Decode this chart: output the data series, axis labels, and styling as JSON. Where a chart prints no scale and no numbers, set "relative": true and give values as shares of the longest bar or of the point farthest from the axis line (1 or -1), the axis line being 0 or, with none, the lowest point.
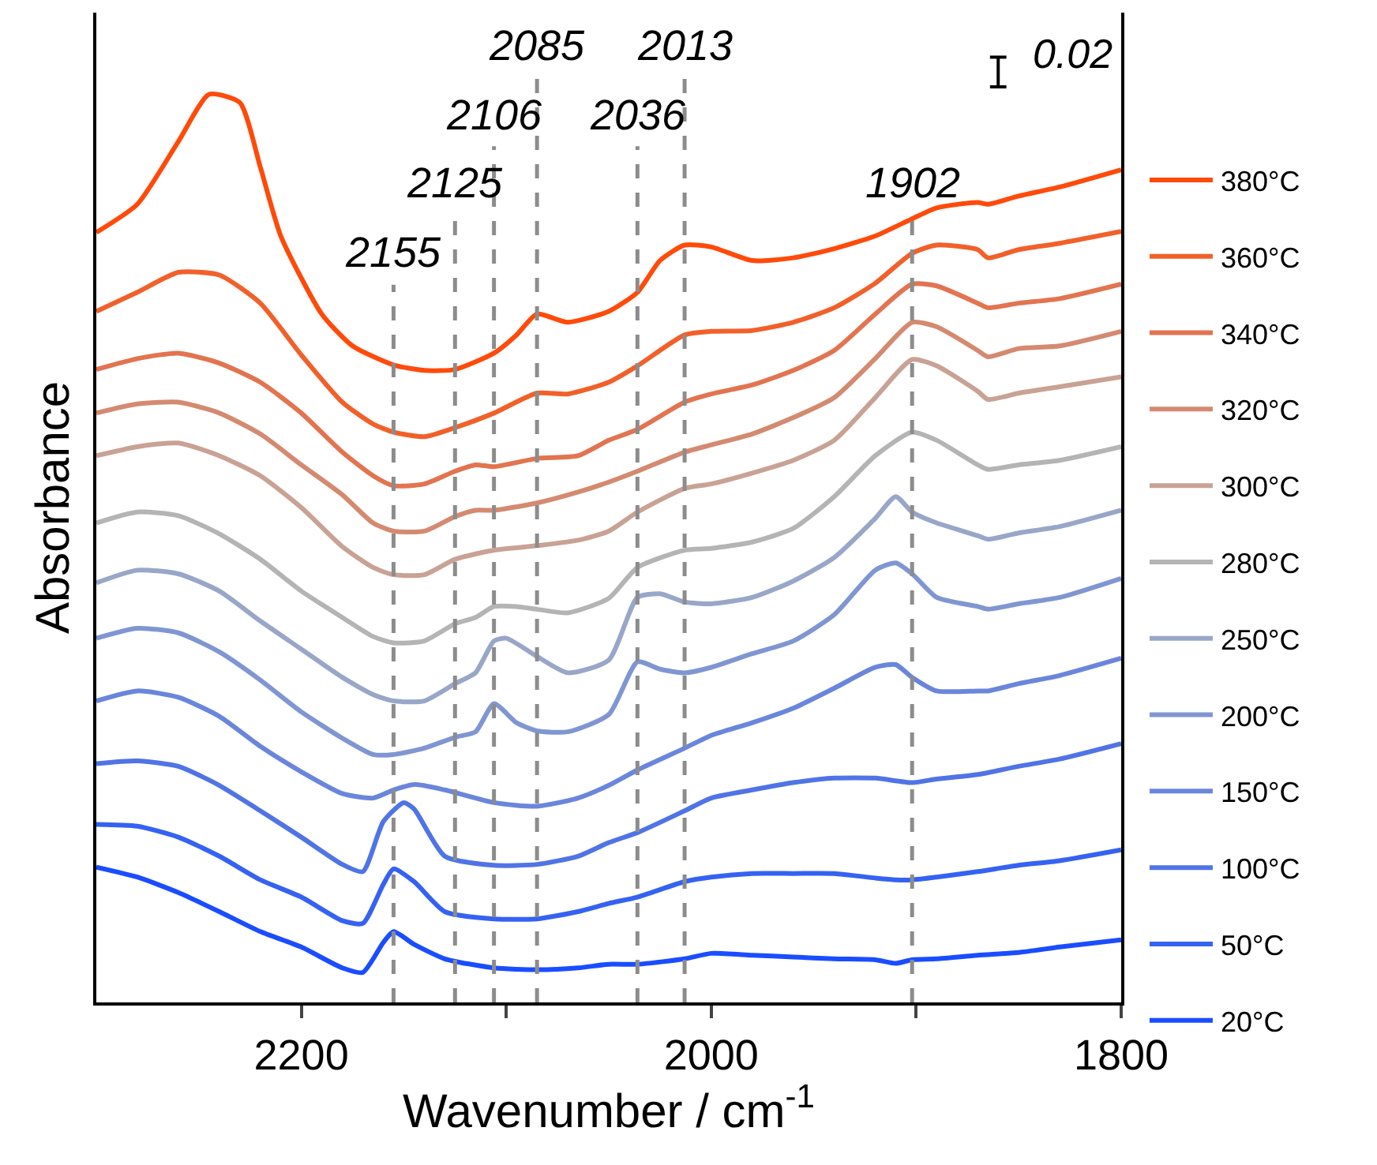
{
  "chart_data": {
    "type": "line",
    "relative": true,
    "xlabel": "Wavenumber / cm$^{-1}$",
    "ylabel": "Absorbance",
    "xlim": [
      2300,
      1800
    ],
    "xticks": [
      2200,
      {
        "value": 2100,
        "label": null
      },
      2000,
      {
        "value": 1900,
        "label": null
      },
      1800
    ],
    "legend": "right",
    "marker": "none",
    "line_style": "solid",
    "annotations": [
      "0.02"
    ],
    "ref_lines": [
      {
        "axis": "x",
        "value": 2155,
        "label": "2155",
        "color": "#8c8c8c",
        "line_style": "dashed"
      },
      {
        "axis": "x",
        "value": 2125,
        "label": "2125",
        "color": "#8c8c8c",
        "line_style": "dashed"
      },
      {
        "axis": "x",
        "value": 2106,
        "label": "2106",
        "color": "#8c8c8c",
        "line_style": "dashed"
      },
      {
        "axis": "x",
        "value": 2085,
        "label": "2085",
        "color": "#8c8c8c",
        "line_style": "dashed"
      },
      {
        "axis": "x",
        "value": 2036,
        "label": "2036",
        "color": "#8c8c8c",
        "line_style": "dashed"
      },
      {
        "axis": "x",
        "value": 2013,
        "label": "2013",
        "color": "#8c8c8c",
        "line_style": "dashed"
      },
      {
        "axis": "x",
        "value": 1902,
        "label": "1902",
        "color": "#8c8c8c",
        "line_style": "dashed"
      }
    ],
    "series": [
      {
        "name": "380°C",
        "color": "#ff4a0a",
        "x": [
          2300,
          2280,
          2260,
          2245,
          2230,
          2220,
          2210,
          2190,
          2175,
          2155,
          2140,
          2125,
          2106,
          2095,
          2085,
          2070,
          2050,
          2036,
          2025,
          2013,
          2000,
          1980,
          1960,
          1940,
          1920,
          1902,
          1890,
          1870,
          1865,
          1850,
          1830,
          1800
        ],
        "values": [
          0.848,
          0.879,
          0.948,
          1.0,
          0.991,
          0.92,
          0.844,
          0.758,
          0.723,
          0.702,
          0.696,
          0.697,
          0.715,
          0.735,
          0.758,
          0.749,
          0.761,
          0.782,
          0.817,
          0.834,
          0.832,
          0.817,
          0.82,
          0.83,
          0.844,
          0.863,
          0.875,
          0.881,
          0.879,
          0.888,
          0.898,
          0.917
        ]
      },
      {
        "name": "360°C",
        "color": "#f2602a",
        "x": [
          2300,
          2280,
          2260,
          2240,
          2220,
          2200,
          2180,
          2165,
          2155,
          2140,
          2125,
          2106,
          2085,
          2070,
          2050,
          2036,
          2013,
          2000,
          1980,
          1960,
          1940,
          1920,
          1902,
          1890,
          1870,
          1865,
          1850,
          1830,
          1800
        ],
        "values": [
          0.761,
          0.782,
          0.804,
          0.801,
          0.77,
          0.713,
          0.661,
          0.637,
          0.628,
          0.623,
          0.633,
          0.649,
          0.671,
          0.67,
          0.683,
          0.701,
          0.735,
          0.739,
          0.74,
          0.749,
          0.765,
          0.792,
          0.825,
          0.834,
          0.829,
          0.82,
          0.829,
          0.836,
          0.849
        ]
      },
      {
        "name": "340°C",
        "color": "#e27450",
        "x": [
          2300,
          2280,
          2260,
          2240,
          2220,
          2200,
          2180,
          2165,
          2155,
          2140,
          2125,
          2115,
          2106,
          2085,
          2065,
          2050,
          2036,
          2013,
          2000,
          1980,
          1960,
          1940,
          1920,
          1902,
          1890,
          1870,
          1865,
          1850,
          1830,
          1800
        ],
        "values": [
          0.697,
          0.709,
          0.715,
          0.704,
          0.683,
          0.649,
          0.606,
          0.58,
          0.569,
          0.571,
          0.585,
          0.592,
          0.59,
          0.599,
          0.602,
          0.619,
          0.631,
          0.661,
          0.67,
          0.68,
          0.696,
          0.718,
          0.758,
          0.791,
          0.789,
          0.77,
          0.765,
          0.77,
          0.775,
          0.791
        ]
      },
      {
        "name": "320°C",
        "color": "#d48a70",
        "x": [
          2300,
          2280,
          2260,
          2240,
          2220,
          2200,
          2180,
          2165,
          2155,
          2140,
          2125,
          2115,
          2106,
          2085,
          2065,
          2050,
          2036,
          2013,
          2000,
          1980,
          1960,
          1940,
          1920,
          1902,
          1890,
          1870,
          1865,
          1850,
          1830,
          1800
        ],
        "values": [
          0.649,
          0.659,
          0.661,
          0.649,
          0.626,
          0.592,
          0.559,
          0.528,
          0.519,
          0.519,
          0.535,
          0.542,
          0.542,
          0.55,
          0.562,
          0.573,
          0.585,
          0.606,
          0.614,
          0.626,
          0.644,
          0.666,
          0.709,
          0.749,
          0.744,
          0.718,
          0.711,
          0.72,
          0.723,
          0.739
        ]
      },
      {
        "name": "300°C",
        "color": "#c8a294",
        "x": [
          2300,
          2280,
          2260,
          2240,
          2220,
          2200,
          2180,
          2165,
          2155,
          2140,
          2125,
          2106,
          2085,
          2065,
          2050,
          2036,
          2013,
          2000,
          1980,
          1960,
          1940,
          1920,
          1902,
          1890,
          1870,
          1865,
          1850,
          1830,
          1800
        ],
        "values": [
          0.602,
          0.612,
          0.616,
          0.602,
          0.58,
          0.545,
          0.502,
          0.479,
          0.471,
          0.471,
          0.488,
          0.498,
          0.503,
          0.509,
          0.519,
          0.54,
          0.566,
          0.571,
          0.583,
          0.597,
          0.619,
          0.666,
          0.708,
          0.701,
          0.673,
          0.664,
          0.671,
          0.678,
          0.689
        ]
      },
      {
        "name": "280°C",
        "color": "#b4b4b4",
        "x": [
          2300,
          2280,
          2260,
          2240,
          2220,
          2200,
          2180,
          2165,
          2155,
          2140,
          2125,
          2115,
          2106,
          2095,
          2085,
          2070,
          2050,
          2036,
          2013,
          2000,
          1980,
          1960,
          1940,
          1920,
          1902,
          1890,
          1870,
          1865,
          1850,
          1830,
          1800
        ],
        "values": [
          0.528,
          0.54,
          0.536,
          0.516,
          0.488,
          0.453,
          0.424,
          0.403,
          0.396,
          0.398,
          0.417,
          0.424,
          0.436,
          0.436,
          0.433,
          0.429,
          0.445,
          0.479,
          0.498,
          0.5,
          0.507,
          0.522,
          0.557,
          0.602,
          0.628,
          0.619,
          0.592,
          0.587,
          0.592,
          0.597,
          0.612
        ]
      },
      {
        "name": "250°C",
        "color": "#98a6c8",
        "x": [
          2300,
          2280,
          2260,
          2240,
          2220,
          2200,
          2180,
          2165,
          2155,
          2140,
          2125,
          2115,
          2106,
          2100,
          2085,
          2070,
          2050,
          2036,
          2025,
          2013,
          2000,
          1980,
          1960,
          1940,
          1920,
          1910,
          1902,
          1890,
          1870,
          1865,
          1850,
          1830,
          1800
        ],
        "values": [
          0.462,
          0.476,
          0.472,
          0.453,
          0.42,
          0.389,
          0.358,
          0.339,
          0.332,
          0.332,
          0.351,
          0.363,
          0.398,
          0.401,
          0.381,
          0.363,
          0.377,
          0.446,
          0.45,
          0.441,
          0.439,
          0.446,
          0.464,
          0.49,
          0.533,
          0.557,
          0.54,
          0.528,
          0.514,
          0.51,
          0.517,
          0.524,
          0.542
        ]
      },
      {
        "name": "200°C",
        "color": "#8096d2",
        "x": [
          2300,
          2280,
          2260,
          2240,
          2220,
          2200,
          2180,
          2165,
          2155,
          2140,
          2125,
          2115,
          2106,
          2095,
          2085,
          2070,
          2050,
          2036,
          2025,
          2013,
          2000,
          1980,
          1960,
          1940,
          1920,
          1910,
          1902,
          1890,
          1870,
          1865,
          1850,
          1830,
          1800
        ],
        "values": [
          0.401,
          0.412,
          0.407,
          0.386,
          0.355,
          0.32,
          0.291,
          0.273,
          0.273,
          0.28,
          0.292,
          0.298,
          0.329,
          0.308,
          0.299,
          0.298,
          0.317,
          0.375,
          0.367,
          0.363,
          0.369,
          0.384,
          0.398,
          0.427,
          0.476,
          0.484,
          0.472,
          0.446,
          0.436,
          0.433,
          0.439,
          0.446,
          0.467
        ]
      },
      {
        "name": "150°C",
        "color": "#6a86dc",
        "x": [
          2300,
          2280,
          2260,
          2240,
          2220,
          2200,
          2180,
          2165,
          2155,
          2145,
          2130,
          2106,
          2085,
          2065,
          2050,
          2036,
          2013,
          2000,
          1980,
          1960,
          1940,
          1920,
          1910,
          1902,
          1890,
          1870,
          1865,
          1850,
          1830,
          1800
        ],
        "values": [
          0.332,
          0.343,
          0.336,
          0.315,
          0.282,
          0.254,
          0.23,
          0.225,
          0.234,
          0.24,
          0.234,
          0.22,
          0.216,
          0.225,
          0.239,
          0.256,
          0.28,
          0.294,
          0.308,
          0.324,
          0.346,
          0.369,
          0.372,
          0.358,
          0.343,
          0.343,
          0.343,
          0.351,
          0.36,
          0.379
        ]
      },
      {
        "name": "100°C",
        "color": "#5074e6",
        "x": [
          2300,
          2280,
          2260,
          2240,
          2220,
          2200,
          2180,
          2170,
          2160,
          2150,
          2145,
          2130,
          2106,
          2085,
          2065,
          2050,
          2036,
          2013,
          2000,
          1980,
          1960,
          1940,
          1920,
          1902,
          1890,
          1870,
          1850,
          1830,
          1800
        ],
        "values": [
          0.263,
          0.266,
          0.26,
          0.239,
          0.211,
          0.182,
          0.152,
          0.144,
          0.199,
          0.22,
          0.213,
          0.161,
          0.151,
          0.152,
          0.161,
          0.176,
          0.187,
          0.211,
          0.225,
          0.234,
          0.242,
          0.247,
          0.247,
          0.242,
          0.246,
          0.251,
          0.26,
          0.268,
          0.285
        ]
      },
      {
        "name": "50°C",
        "color": "#3562f2",
        "x": [
          2300,
          2280,
          2260,
          2240,
          2220,
          2200,
          2180,
          2170,
          2160,
          2155,
          2145,
          2130,
          2106,
          2085,
          2065,
          2050,
          2036,
          2013,
          2000,
          1980,
          1960,
          1940,
          1920,
          1910,
          1902,
          1890,
          1870,
          1850,
          1830,
          1800
        ],
        "values": [
          0.196,
          0.194,
          0.182,
          0.161,
          0.135,
          0.116,
          0.09,
          0.087,
          0.13,
          0.147,
          0.133,
          0.1,
          0.092,
          0.092,
          0.1,
          0.109,
          0.116,
          0.133,
          0.138,
          0.142,
          0.142,
          0.142,
          0.137,
          0.135,
          0.135,
          0.138,
          0.144,
          0.151,
          0.156,
          0.168
        ]
      },
      {
        "name": "20°C",
        "color": "#1a4dff",
        "x": [
          2300,
          2280,
          2260,
          2240,
          2220,
          2200,
          2180,
          2170,
          2160,
          2155,
          2145,
          2130,
          2106,
          2085,
          2065,
          2050,
          2036,
          2013,
          2000,
          1980,
          1960,
          1940,
          1920,
          1910,
          1902,
          1890,
          1870,
          1850,
          1830,
          1800
        ],
        "values": [
          0.149,
          0.138,
          0.121,
          0.1,
          0.078,
          0.061,
          0.038,
          0.033,
          0.066,
          0.078,
          0.064,
          0.048,
          0.038,
          0.036,
          0.038,
          0.042,
          0.042,
          0.048,
          0.054,
          0.052,
          0.05,
          0.048,
          0.047,
          0.043,
          0.047,
          0.048,
          0.052,
          0.055,
          0.061,
          0.069
        ]
      }
    ]
  }
}
